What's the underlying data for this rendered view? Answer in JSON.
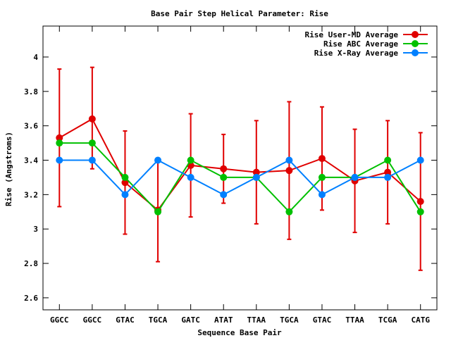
{
  "chart_data": {
    "type": "line",
    "title": "Base Pair Step Helical Parameter: Rise",
    "xlabel": "Sequence Base Pair",
    "ylabel": "Rise (Angstroms)",
    "categories": [
      "GGCC",
      "GGCC",
      "GTAC",
      "TGCA",
      "GATC",
      "ATAT",
      "TTAA",
      "TGCA",
      "GTAC",
      "TTAA",
      "TCGA",
      "CATG"
    ],
    "ylim": [
      2.53,
      4.18
    ],
    "yticks": [
      2.6,
      2.8,
      3,
      3.2,
      3.4,
      3.6,
      3.8,
      4
    ],
    "ytick_labels": [
      "2.6",
      "2.8",
      "3",
      "3.2",
      "3.4",
      "3.6",
      "3.8",
      "4"
    ],
    "legend_position": "top-right",
    "grid": false,
    "series": [
      {
        "name": "Rise User-MD Average",
        "color": "#e00000",
        "values": [
          3.53,
          3.64,
          3.27,
          3.11,
          3.37,
          3.35,
          3.33,
          3.34,
          3.41,
          3.28,
          3.33,
          3.16
        ],
        "error_low": [
          3.13,
          3.35,
          2.97,
          2.81,
          3.07,
          3.15,
          3.03,
          2.94,
          3.11,
          2.98,
          3.03,
          2.76
        ],
        "error_high": [
          3.93,
          3.94,
          3.57,
          3.41,
          3.67,
          3.55,
          3.63,
          3.74,
          3.71,
          3.58,
          3.63,
          3.56
        ]
      },
      {
        "name": "Rise ABC Average",
        "color": "#00c000",
        "values": [
          3.5,
          3.5,
          3.3,
          3.1,
          3.4,
          3.3,
          3.3,
          3.1,
          3.3,
          3.3,
          3.4,
          3.1
        ]
      },
      {
        "name": "Rise X-Ray Average",
        "color": "#0080ff",
        "values": [
          3.4,
          3.4,
          3.2,
          3.4,
          3.3,
          3.2,
          3.3,
          3.4,
          3.2,
          3.3,
          3.3,
          3.4
        ]
      }
    ]
  }
}
